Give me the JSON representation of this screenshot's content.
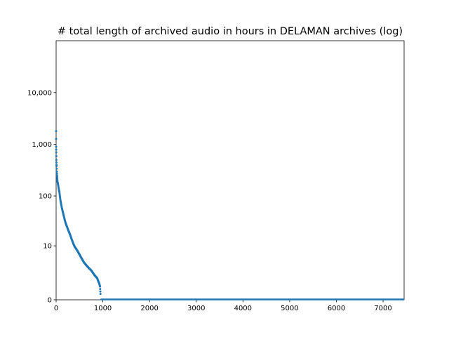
{
  "chart_data": {
    "type": "scatter",
    "title": "# total length of archived audio in hours in DELAMAN archives (log)",
    "xlabel": "",
    "ylabel": "",
    "xlim": [
      0,
      7450
    ],
    "ylim_display": [
      0,
      100000
    ],
    "yscale": "log",
    "grid": false,
    "legend": "none",
    "marker_color": "#1f77b4",
    "x_ticks": [
      0,
      1000,
      2000,
      3000,
      4000,
      5000,
      6000,
      7000
    ],
    "x_tick_labels": [
      "0",
      "1000",
      "2000",
      "3000",
      "4000",
      "5000",
      "6000",
      "7000"
    ],
    "y_ticks": [
      0,
      10,
      100,
      1000,
      10000
    ],
    "y_tick_labels": [
      "0",
      "10",
      "100",
      "1,000",
      "10,000"
    ],
    "series": [
      {
        "description": "archives sorted by descending total audio hours",
        "x": [
          0,
          1,
          3,
          5,
          8,
          10,
          15,
          20,
          25,
          30,
          40,
          50,
          60,
          70,
          80,
          90,
          100,
          120,
          140,
          160,
          180,
          200,
          230,
          260,
          300,
          330,
          370,
          400,
          450,
          500,
          550,
          600,
          650,
          700,
          750,
          800,
          820,
          850,
          880,
          900,
          920,
          940,
          950
        ],
        "y": [
          1800,
          900,
          700,
          500,
          400,
          380,
          300,
          250,
          220,
          190,
          170,
          150,
          130,
          120,
          100,
          85,
          75,
          60,
          50,
          42,
          35,
          30,
          25,
          21,
          17,
          14,
          11,
          9.5,
          8,
          6.5,
          5.2,
          4.2,
          3.6,
          3.1,
          2.7,
          2.2,
          2.0,
          1.8,
          1.6,
          1.3,
          1.1,
          0.8,
          0.3
        ]
      }
    ],
    "zero_segment": {
      "x_start": 950,
      "x_end": 7450,
      "y": 0
    }
  }
}
